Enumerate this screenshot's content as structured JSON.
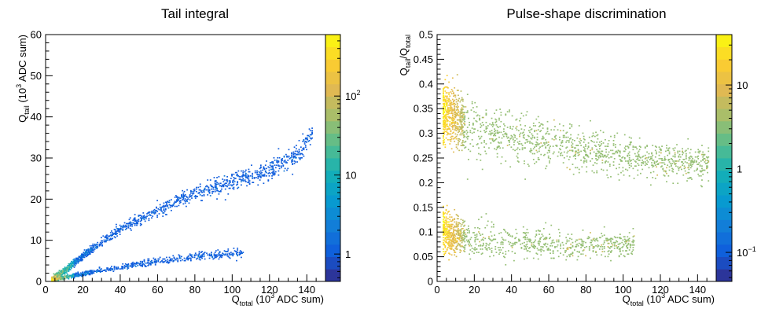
{
  "chart_data": [
    {
      "type": "heatmap",
      "title": "Tail integral",
      "xlabel": {
        "main": "Q",
        "sub": "total",
        "unit_pre": "  (10",
        "unit_exp": "3",
        "unit_post": " ADC sum)"
      },
      "ylabel": {
        "main": "Q",
        "sub": "tail",
        "unit_pre": "  (10",
        "unit_exp": "3",
        "unit_post": " ADC sum)"
      },
      "xlim": [
        0,
        150
      ],
      "ylim": [
        0,
        60
      ],
      "x_ticks": [
        0,
        20,
        40,
        60,
        80,
        100,
        120,
        140
      ],
      "y_ticks": [
        0,
        10,
        20,
        30,
        40,
        50,
        60
      ],
      "colorbar": {
        "scale": "log",
        "range": [
          0.45,
          600
        ],
        "ticks": [
          {
            "value": 1,
            "base": "1",
            "exp": ""
          },
          {
            "value": 10,
            "base": "10",
            "exp": ""
          },
          {
            "value": 100,
            "base": "10",
            "exp": "2"
          }
        ]
      },
      "bands": [
        {
          "name": "",
          "points": [
            [
              3,
              0.4
            ],
            [
              10,
              2.6
            ],
            [
              20,
              6.3
            ],
            [
              40,
              12.8
            ],
            [
              60,
              17.3
            ],
            [
              80,
              21.6
            ],
            [
              100,
              24.2
            ],
            [
              120,
              27.2
            ],
            [
              135,
              30.5
            ],
            [
              143,
              36.5
            ]
          ]
        },
        {
          "name": "",
          "points": [
            [
              3,
              0.2
            ],
            [
              10,
              1.1
            ],
            [
              20,
              1.9
            ],
            [
              40,
              3.6
            ],
            [
              60,
              4.9
            ],
            [
              80,
              6.1
            ],
            [
              104,
              7.0
            ]
          ]
        }
      ]
    },
    {
      "type": "heatmap",
      "title": "Pulse-shape discrimination",
      "xlabel": {
        "main": "Q",
        "sub": "total",
        "unit_pre": "  (10",
        "unit_exp": "3",
        "unit_post": " ADC sum)"
      },
      "ylabel": {
        "main": "Q",
        "sub": "tail",
        "slash": "/Q",
        "sub2": "total"
      },
      "xlim": [
        0,
        150
      ],
      "ylim": [
        0,
        0.5
      ],
      "x_ticks": [
        0,
        20,
        40,
        60,
        80,
        100,
        120,
        140
      ],
      "y_ticks": [
        0,
        0.05,
        0.1,
        0.15,
        0.2,
        0.25,
        0.3,
        0.35,
        0.4,
        0.45,
        0.5
      ],
      "colorbar": {
        "scale": "log",
        "range": [
          0.045,
          40
        ],
        "ticks": [
          {
            "value": 0.1,
            "base": "10",
            "exp": "−1"
          },
          {
            "value": 1,
            "base": "1",
            "exp": ""
          },
          {
            "value": 10,
            "base": "10",
            "exp": ""
          }
        ]
      },
      "bands": [
        {
          "name": "",
          "points": [
            [
              5,
              0.34
            ],
            [
              10,
              0.33
            ],
            [
              20,
              0.31
            ],
            [
              40,
              0.293
            ],
            [
              60,
              0.28
            ],
            [
              80,
              0.267
            ],
            [
              100,
              0.255
            ],
            [
              120,
              0.245
            ],
            [
              140,
              0.24
            ]
          ]
        },
        {
          "name": "",
          "points": [
            [
              3,
              0.105
            ],
            [
              5,
              0.1
            ],
            [
              10,
              0.092
            ],
            [
              20,
              0.085
            ],
            [
              40,
              0.08
            ],
            [
              60,
              0.077
            ],
            [
              80,
              0.075
            ],
            [
              104,
              0.075
            ]
          ]
        }
      ]
    }
  ]
}
